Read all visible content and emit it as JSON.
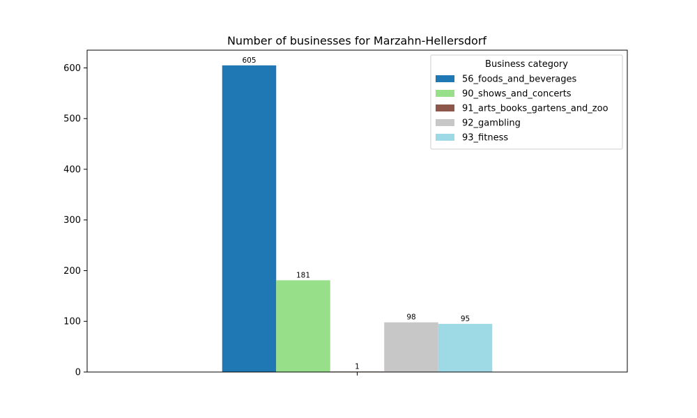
{
  "chart_data": {
    "type": "bar",
    "title": "Number of businesses for Marzahn-Hellersdorf",
    "xlabel": "",
    "ylabel": "",
    "categories": [
      ""
    ],
    "ylim": [
      0,
      635
    ],
    "yticks": [
      0,
      100,
      200,
      300,
      400,
      500,
      600
    ],
    "grid": false,
    "legend": {
      "title": "Business category",
      "placement": "top-right"
    },
    "series": [
      {
        "name": "56_foods_and_beverages",
        "values": [
          605
        ],
        "color": "#1f77b4",
        "label": "605"
      },
      {
        "name": "90_shows_and_concerts",
        "values": [
          181
        ],
        "color": "#98df8a",
        "label": "181"
      },
      {
        "name": "91_arts_books_gartens_and_zoo",
        "values": [
          1
        ],
        "color": "#8c564b",
        "label": "1"
      },
      {
        "name": "92_gambling",
        "values": [
          98
        ],
        "color": "#c7c7c7",
        "label": "98"
      },
      {
        "name": "93_fitness",
        "values": [
          95
        ],
        "color": "#9edae5",
        "label": "95"
      }
    ]
  }
}
